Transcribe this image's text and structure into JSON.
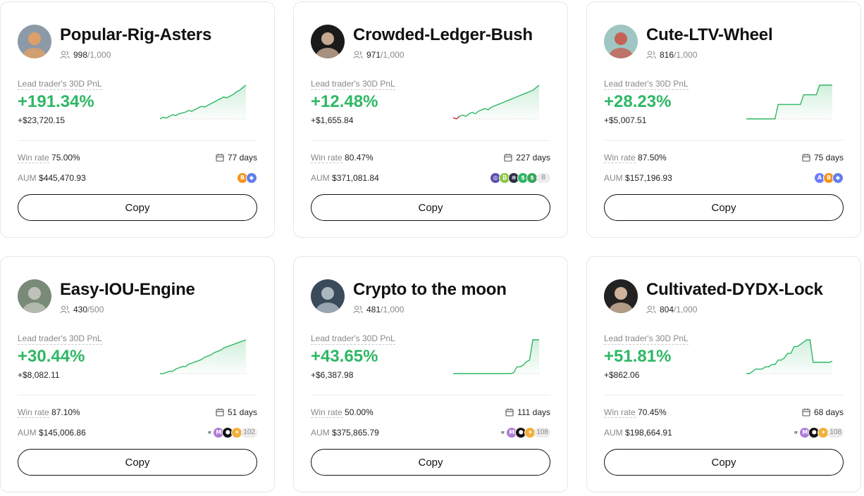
{
  "icons": {
    "followers": "users-icon",
    "days": "calendar-icon",
    "avatar": "avatar"
  },
  "colors": {
    "positive": "#2fb765",
    "negative": "#e0314b",
    "muted": "#888888"
  },
  "cards": [
    {
      "name": "Popular-Rig-Asters",
      "followers": "998",
      "followers_max": "/1,000",
      "pnl_label": "Lead trader's 30D PnL",
      "pnl_pct": "+191.34%",
      "pnl_amount": "+$23,720.15",
      "win_label": "Win rate",
      "win_rate": "75.00%",
      "days": "77 days",
      "aum_label": "AUM",
      "aum": "$445,470.93",
      "coins": [
        "B",
        "◆"
      ],
      "coin_colors": [
        "#f7931a",
        "#627eea"
      ],
      "coin_more": "",
      "copy_label": "Copy",
      "avatar_colors": [
        "#8c9aa8",
        "#e8a060"
      ],
      "spark": [
        4,
        6,
        5,
        7,
        9,
        8,
        10,
        11,
        12,
        14,
        13,
        15,
        17,
        19,
        18,
        20,
        22,
        24,
        26,
        28,
        30,
        29,
        31,
        33,
        36,
        38,
        41,
        44
      ]
    },
    {
      "name": "Crowded-Ledger-Bush",
      "followers": "971",
      "followers_max": "/1,000",
      "pnl_label": "Lead trader's 30D PnL",
      "pnl_pct": "+12.48%",
      "pnl_amount": "+$1,655.84",
      "win_label": "Win rate",
      "win_rate": "80.47%",
      "days": "227 days",
      "aum_label": "AUM",
      "aum": "$371,081.84",
      "coins": [
        "◎",
        "₿",
        "≡",
        "$",
        "$"
      ],
      "coin_colors": [
        "#5a4fb0",
        "#8dc63f",
        "#2b2f44",
        "#2fb765",
        "#3aa55d"
      ],
      "coin_more": "8",
      "copy_label": "Copy",
      "avatar_colors": [
        "#1a1a1a",
        "#d8b8a0"
      ],
      "spark": [
        0,
        -1,
        1,
        2,
        1,
        3,
        4,
        3,
        5,
        6,
        7,
        6,
        8,
        9,
        10,
        11,
        12,
        13,
        14,
        15,
        16,
        17,
        18,
        19,
        20,
        21,
        23,
        25
      ]
    },
    {
      "name": "Cute-LTV-Wheel",
      "followers": "816",
      "followers_max": "/1,000",
      "pnl_label": "Lead trader's 30D PnL",
      "pnl_pct": "+28.23%",
      "pnl_amount": "+$5,007.51",
      "win_label": "Win rate",
      "win_rate": "87.50%",
      "days": "75 days",
      "aum_label": "AUM",
      "aum": "$157,196.93",
      "coins": [
        "A",
        "B",
        "◆"
      ],
      "coin_colors": [
        "#6b7cff",
        "#f7931a",
        "#627eea"
      ],
      "coin_more": "",
      "copy_label": "Copy",
      "avatar_colors": [
        "#9fc6c2",
        "#c8574a"
      ],
      "spark": [
        0,
        0,
        0,
        0,
        0,
        0,
        0,
        0,
        0,
        0,
        12,
        12,
        12,
        12,
        12,
        12,
        12,
        12,
        20,
        20,
        20,
        20,
        20,
        28,
        28,
        28,
        28,
        28
      ]
    },
    {
      "name": "Easy-IOU-Engine",
      "followers": "430",
      "followers_max": "/500",
      "pnl_label": "Lead trader's 30D PnL",
      "pnl_pct": "+30.44%",
      "pnl_amount": "+$8,082.11",
      "win_label": "Win rate",
      "win_rate": "87.10%",
      "days": "51 days",
      "aum_label": "AUM",
      "aum": "$145,006.86",
      "coins": [
        "∝",
        "M",
        "⬢",
        "✦"
      ],
      "coin_colors": [
        "#ffffff",
        "#b07cd8",
        "#111111",
        "#f2b13c"
      ],
      "coin_more": "102",
      "copy_label": "Copy",
      "avatar_colors": [
        "#7a8a78",
        "#c8c8c0"
      ],
      "spark": [
        2,
        2,
        3,
        4,
        4,
        6,
        7,
        8,
        8,
        10,
        11,
        12,
        13,
        14,
        16,
        17,
        18,
        20,
        21,
        22,
        24,
        25,
        26,
        27,
        28,
        29,
        30,
        31
      ]
    },
    {
      "name": "Crypto to the moon",
      "followers": "481",
      "followers_max": "/1,000",
      "pnl_label": "Lead trader's 30D PnL",
      "pnl_pct": "+43.65%",
      "pnl_amount": "+$6,387.98",
      "win_label": "Win rate",
      "win_rate": "50.00%",
      "days": "111 days",
      "aum_label": "AUM",
      "aum": "$375,865.79",
      "coins": [
        "∝",
        "M",
        "⬢",
        "✦"
      ],
      "coin_colors": [
        "#ffffff",
        "#b07cd8",
        "#111111",
        "#f2b13c"
      ],
      "coin_more": "108",
      "copy_label": "Copy",
      "avatar_colors": [
        "#3a4a5a",
        "#b8c4cc"
      ],
      "spark": [
        0,
        0,
        0,
        0,
        0,
        0,
        0,
        0,
        0,
        0,
        0,
        0,
        0,
        0,
        0,
        0,
        0,
        0,
        0,
        1,
        8,
        8,
        10,
        14,
        16,
        40,
        40,
        40
      ]
    },
    {
      "name": "Cultivated-DYDX-Lock",
      "followers": "804",
      "followers_max": "/1,000",
      "pnl_label": "Lead trader's 30D PnL",
      "pnl_pct": "+51.81%",
      "pnl_amount": "+$862.06",
      "win_label": "Win rate",
      "win_rate": "70.45%",
      "days": "68 days",
      "aum_label": "AUM",
      "aum": "$198,664.91",
      "coins": [
        "∝",
        "M",
        "⬢",
        "✦"
      ],
      "coin_colors": [
        "#ffffff",
        "#b07cd8",
        "#111111",
        "#f2b13c"
      ],
      "coin_more": "108",
      "copy_label": "Copy",
      "avatar_colors": [
        "#222222",
        "#e2c4a8"
      ],
      "spark": [
        0,
        0,
        2,
        4,
        4,
        4,
        6,
        6,
        8,
        8,
        12,
        12,
        14,
        18,
        18,
        24,
        24,
        26,
        28,
        30,
        30,
        10,
        10,
        10,
        10,
        10,
        10,
        11
      ]
    }
  ]
}
